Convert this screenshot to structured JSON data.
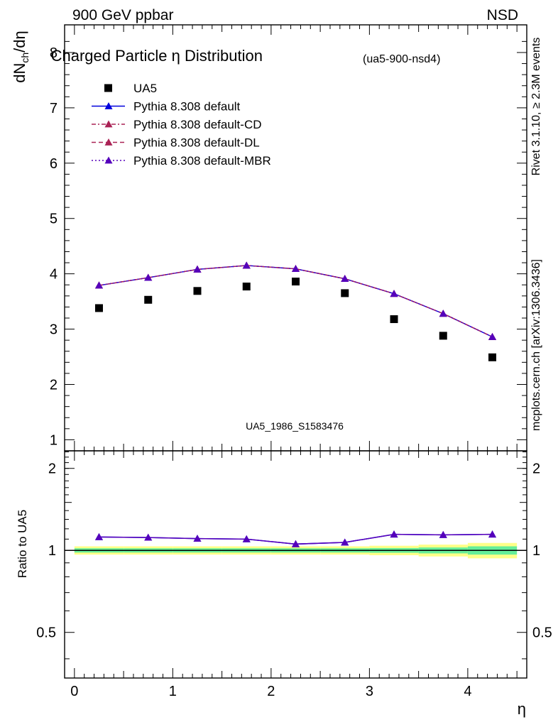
{
  "header": {
    "left": "900 GeV ppbar",
    "right": "NSD"
  },
  "side_labels": {
    "rivet": "Rivet 3.1.10, ≥ 2.3M events",
    "mcplots": "mcplots.cern.ch [arXiv:1306.3436]"
  },
  "chart_data": [
    {
      "type": "scatter",
      "title": "Charged Particle η Distribution",
      "subtitle": "(ua5-900-nsd4)",
      "watermark": "UA5_1986_S1583476",
      "ylabel_main": "dN",
      "ylabel_sub": "ch",
      "ylabel_tail": "/dη",
      "xlim": [
        -0.1,
        4.6
      ],
      "ylim": [
        0.8,
        8.5
      ],
      "yticks": [
        1,
        2,
        3,
        4,
        5,
        6,
        7,
        8
      ],
      "legend_position": "top-left",
      "x": [
        0.25,
        0.75,
        1.25,
        1.75,
        2.25,
        2.75,
        3.25,
        3.75,
        4.25
      ],
      "series": [
        {
          "name": "UA5",
          "marker": "square",
          "color": "#000000",
          "line": "none",
          "values": [
            3.38,
            3.53,
            3.69,
            3.77,
            3.86,
            3.65,
            3.18,
            2.88,
            2.49
          ]
        },
        {
          "name": "Pythia 8.308 default",
          "marker": "triangle",
          "color": "#0000dd",
          "line": "solid",
          "values": [
            3.79,
            3.93,
            4.08,
            4.15,
            4.09,
            3.91,
            3.64,
            3.28,
            2.86
          ]
        },
        {
          "name": "Pythia 8.308 default-CD",
          "marker": "triangle",
          "color": "#aa2255",
          "line": "dashdot",
          "values": [
            3.79,
            3.93,
            4.08,
            4.15,
            4.09,
            3.91,
            3.64,
            3.28,
            2.86
          ]
        },
        {
          "name": "Pythia 8.308 default-DL",
          "marker": "triangle",
          "color": "#aa2255",
          "line": "dashed",
          "values": [
            3.79,
            3.93,
            4.08,
            4.15,
            4.09,
            3.91,
            3.64,
            3.28,
            2.86
          ]
        },
        {
          "name": "Pythia 8.308 default-MBR",
          "marker": "triangle",
          "color": "#5500bb",
          "line": "dotted",
          "values": [
            3.79,
            3.93,
            4.08,
            4.15,
            4.09,
            3.91,
            3.64,
            3.28,
            2.86
          ]
        }
      ]
    },
    {
      "type": "line",
      "ylabel": "Ratio to UA5",
      "xlabel": "η",
      "xlim": [
        -0.1,
        4.6
      ],
      "ylim": [
        0.34,
        2.32
      ],
      "yticks": [
        0.5,
        1,
        2
      ],
      "ytick_labels": [
        "0.5",
        "1",
        "2"
      ],
      "xticks": [
        0,
        1,
        2,
        3,
        4
      ],
      "xtick_labels": [
        "0",
        "1",
        "2",
        "3",
        "4"
      ],
      "reference_line": 1,
      "uncertainty_band": {
        "x_edges": [
          0,
          0.5,
          1.0,
          1.5,
          2.0,
          2.5,
          3.0,
          3.5,
          4.0,
          4.5
        ],
        "inner_half_width": [
          0.018,
          0.018,
          0.018,
          0.018,
          0.018,
          0.018,
          0.02,
          0.025,
          0.035
        ],
        "outer_half_width": [
          0.035,
          0.035,
          0.035,
          0.035,
          0.035,
          0.035,
          0.04,
          0.05,
          0.065
        ],
        "inner_color": "#66ee99",
        "outer_color": "#ffff88"
      },
      "x": [
        0.25,
        0.75,
        1.25,
        1.75,
        2.25,
        2.75,
        3.25,
        3.75,
        4.25
      ],
      "series": [
        {
          "name": "Pythia 8.308 default",
          "color": "#0000dd",
          "values": [
            1.12,
            1.115,
            1.105,
            1.1,
            1.055,
            1.07,
            1.145,
            1.14,
            1.145
          ]
        },
        {
          "name": "Pythia 8.308 default-MBR",
          "color": "#5500bb",
          "values": [
            1.12,
            1.115,
            1.105,
            1.1,
            1.055,
            1.07,
            1.145,
            1.14,
            1.145
          ]
        }
      ]
    }
  ]
}
